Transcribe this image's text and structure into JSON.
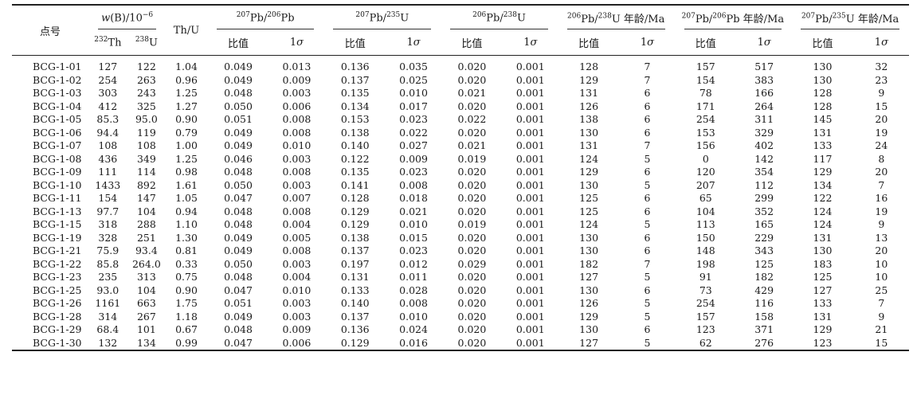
{
  "header": {
    "sample": "点号",
    "wB": "w(B)/10",
    "wB_exp": "−6",
    "th232": "Th",
    "th232_sup": "232",
    "u238": "U",
    "u238_sup": "238",
    "thu": "Th/U",
    "g1_sup1": "207",
    "g1_sup2": "206",
    "g2_sup1": "207",
    "g2_sup2": "235",
    "g3_sup1": "206",
    "g3_sup2": "238",
    "ratio": "比值",
    "sigma": "1σ",
    "age1": "Pb/",
    "age_unit": "U 年龄/Ma",
    "age_pb_unit": "Pb 年龄/Ma"
  },
  "rows": [
    [
      "BCG-1-01",
      "127",
      "122",
      "1.04",
      "0.049",
      "0.013",
      "0.136",
      "0.035",
      "0.020",
      "0.001",
      "128",
      "7",
      "157",
      "517",
      "130",
      "32"
    ],
    [
      "BCG-1-02",
      "254",
      "263",
      "0.96",
      "0.049",
      "0.009",
      "0.137",
      "0.025",
      "0.020",
      "0.001",
      "129",
      "7",
      "154",
      "383",
      "130",
      "23"
    ],
    [
      "BCG-1-03",
      "303",
      "243",
      "1.25",
      "0.048",
      "0.003",
      "0.135",
      "0.010",
      "0.021",
      "0.001",
      "131",
      "6",
      "78",
      "166",
      "128",
      "9"
    ],
    [
      "BCG-1-04",
      "412",
      "325",
      "1.27",
      "0.050",
      "0.006",
      "0.134",
      "0.017",
      "0.020",
      "0.001",
      "126",
      "6",
      "171",
      "264",
      "128",
      "15"
    ],
    [
      "BCG-1-05",
      "85.3",
      "95.0",
      "0.90",
      "0.051",
      "0.008",
      "0.153",
      "0.023",
      "0.022",
      "0.001",
      "138",
      "6",
      "254",
      "311",
      "145",
      "20"
    ],
    [
      "BCG-1-06",
      "94.4",
      "119",
      "0.79",
      "0.049",
      "0.008",
      "0.138",
      "0.022",
      "0.020",
      "0.001",
      "130",
      "6",
      "153",
      "329",
      "131",
      "19"
    ],
    [
      "BCG-1-07",
      "108",
      "108",
      "1.00",
      "0.049",
      "0.010",
      "0.140",
      "0.027",
      "0.021",
      "0.001",
      "131",
      "7",
      "156",
      "402",
      "133",
      "24"
    ],
    [
      "BCG-1-08",
      "436",
      "349",
      "1.25",
      "0.046",
      "0.003",
      "0.122",
      "0.009",
      "0.019",
      "0.001",
      "124",
      "5",
      "0",
      "142",
      "117",
      "8"
    ],
    [
      "BCG-1-09",
      "111",
      "114",
      "0.98",
      "0.048",
      "0.008",
      "0.135",
      "0.023",
      "0.020",
      "0.001",
      "129",
      "6",
      "120",
      "354",
      "129",
      "20"
    ],
    [
      "BCG-1-10",
      "1433",
      "892",
      "1.61",
      "0.050",
      "0.003",
      "0.141",
      "0.008",
      "0.020",
      "0.001",
      "130",
      "5",
      "207",
      "112",
      "134",
      "7"
    ],
    [
      "BCG-1-11",
      "154",
      "147",
      "1.05",
      "0.047",
      "0.007",
      "0.128",
      "0.018",
      "0.020",
      "0.001",
      "125",
      "6",
      "65",
      "299",
      "122",
      "16"
    ],
    [
      "BCG-1-13",
      "97.7",
      "104",
      "0.94",
      "0.048",
      "0.008",
      "0.129",
      "0.021",
      "0.020",
      "0.001",
      "125",
      "6",
      "104",
      "352",
      "124",
      "19"
    ],
    [
      "BCG-1-15",
      "318",
      "288",
      "1.10",
      "0.048",
      "0.004",
      "0.129",
      "0.010",
      "0.019",
      "0.001",
      "124",
      "5",
      "113",
      "165",
      "124",
      "9"
    ],
    [
      "BCG-1-19",
      "328",
      "251",
      "1.30",
      "0.049",
      "0.005",
      "0.138",
      "0.015",
      "0.020",
      "0.001",
      "130",
      "6",
      "150",
      "229",
      "131",
      "13"
    ],
    [
      "BCG-1-21",
      "75.9",
      "93.4",
      "0.81",
      "0.049",
      "0.008",
      "0.137",
      "0.023",
      "0.020",
      "0.001",
      "130",
      "6",
      "148",
      "343",
      "130",
      "20"
    ],
    [
      "BCG-1-22",
      "85.8",
      "264.0",
      "0.33",
      "0.050",
      "0.003",
      "0.197",
      "0.012",
      "0.029",
      "0.001",
      "182",
      "7",
      "198",
      "125",
      "183",
      "10"
    ],
    [
      "BCG-1-23",
      "235",
      "313",
      "0.75",
      "0.048",
      "0.004",
      "0.131",
      "0.011",
      "0.020",
      "0.001",
      "127",
      "5",
      "91",
      "182",
      "125",
      "10"
    ],
    [
      "BCG-1-25",
      "93.0",
      "104",
      "0.90",
      "0.047",
      "0.010",
      "0.133",
      "0.028",
      "0.020",
      "0.001",
      "130",
      "6",
      "73",
      "429",
      "127",
      "25"
    ],
    [
      "BCG-1-26",
      "1161",
      "663",
      "1.75",
      "0.051",
      "0.003",
      "0.140",
      "0.008",
      "0.020",
      "0.001",
      "126",
      "5",
      "254",
      "116",
      "133",
      "7"
    ],
    [
      "BCG-1-28",
      "314",
      "267",
      "1.18",
      "0.049",
      "0.003",
      "0.137",
      "0.010",
      "0.020",
      "0.001",
      "129",
      "5",
      "157",
      "158",
      "131",
      "9"
    ],
    [
      "BCG-1-29",
      "68.4",
      "101",
      "0.67",
      "0.048",
      "0.009",
      "0.136",
      "0.024",
      "0.020",
      "0.001",
      "130",
      "6",
      "123",
      "371",
      "129",
      "21"
    ],
    [
      "BCG-1-30",
      "132",
      "134",
      "0.99",
      "0.047",
      "0.006",
      "0.129",
      "0.016",
      "0.020",
      "0.001",
      "127",
      "5",
      "62",
      "276",
      "123",
      "15"
    ]
  ]
}
